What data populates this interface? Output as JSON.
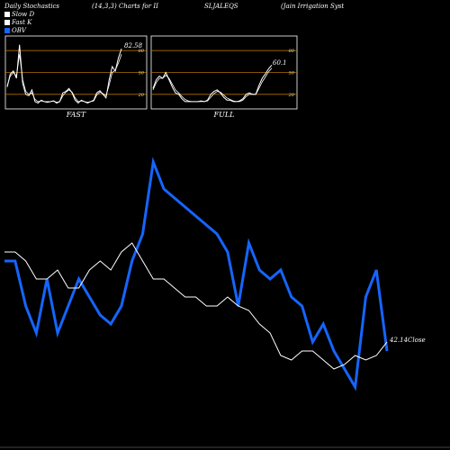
{
  "header": {
    "title": "Daily Stochastics",
    "params": "(14,3,3) Charts for II",
    "symbol": "SLJALEQS",
    "company": "(Jain Irrigation Syst"
  },
  "legend": [
    {
      "label": "Slow  D",
      "color": "#ffffff"
    },
    {
      "label": "Fast K",
      "color": "#ffffff"
    },
    {
      "label": "OBV",
      "color": "#1565ff"
    }
  ],
  "panels": {
    "fast": {
      "label": "FAST",
      "last_value_label": "82.58"
    },
    "full": {
      "label": "FULL",
      "last_value_label": "60.1"
    }
  },
  "main": {
    "close_label": "42.14Close"
  },
  "chart_data": [
    {
      "type": "line",
      "title": "FAST",
      "ylim": [
        0,
        100
      ],
      "y_ticks": [
        20,
        50,
        80
      ],
      "reference_lines": [
        20,
        50,
        80
      ],
      "series": [
        {
          "name": "Fast K",
          "values": [
            30,
            48,
            52,
            42,
            88,
            35,
            20,
            18,
            26,
            10,
            8,
            12,
            10,
            9,
            10,
            11,
            8,
            10,
            22,
            24,
            28,
            22,
            12,
            8,
            12,
            10,
            8,
            10,
            12,
            22,
            25,
            20,
            15,
            40,
            58,
            52,
            70,
            82.58
          ]
        },
        {
          "name": "Slow  D",
          "values": [
            32,
            45,
            50,
            45,
            75,
            40,
            24,
            20,
            22,
            13,
            10,
            11,
            10,
            10,
            10,
            11,
            9,
            10,
            18,
            23,
            26,
            23,
            15,
            10,
            11,
            10,
            9,
            10,
            11,
            19,
            23,
            21,
            18,
            33,
            50,
            53,
            63,
            75
          ]
        }
      ]
    },
    {
      "type": "line",
      "title": "FULL",
      "ylim": [
        0,
        100
      ],
      "y_ticks": [
        20,
        50,
        80
      ],
      "reference_lines": [
        20,
        50,
        80
      ],
      "series": [
        {
          "name": "Full K",
          "values": [
            28,
            40,
            45,
            42,
            50,
            40,
            30,
            22,
            20,
            14,
            10,
            10,
            10,
            10,
            10,
            11,
            10,
            12,
            20,
            24,
            26,
            22,
            16,
            12,
            12,
            10,
            10,
            11,
            14,
            20,
            22,
            20,
            20,
            32,
            42,
            48,
            55,
            60.1
          ]
        },
        {
          "name": "Full D",
          "values": [
            26,
            36,
            42,
            42,
            46,
            42,
            34,
            26,
            22,
            17,
            13,
            11,
            10,
            10,
            10,
            10,
            10,
            11,
            16,
            21,
            24,
            23,
            19,
            15,
            13,
            11,
            10,
            10,
            12,
            17,
            20,
            20,
            20,
            28,
            37,
            44,
            51,
            56
          ]
        }
      ]
    },
    {
      "type": "line",
      "title": "",
      "series": [
        {
          "name": "OBV",
          "values": [
            290,
            290,
            340,
            370,
            310,
            370,
            340,
            310,
            330,
            350,
            360,
            340,
            290,
            260,
            180,
            210,
            220,
            230,
            240,
            250,
            260,
            280,
            340,
            270,
            300,
            310,
            300,
            330,
            340,
            380,
            360,
            390,
            410,
            430,
            330,
            300,
            390
          ]
        },
        {
          "name": "Close",
          "values": [
            280,
            280,
            290,
            310,
            310,
            300,
            320,
            320,
            300,
            290,
            300,
            280,
            270,
            290,
            310,
            310,
            320,
            330,
            330,
            340,
            340,
            330,
            340,
            345,
            360,
            370,
            395,
            400,
            390,
            390,
            400,
            410,
            405,
            395,
            400,
            395,
            380
          ]
        }
      ]
    }
  ]
}
